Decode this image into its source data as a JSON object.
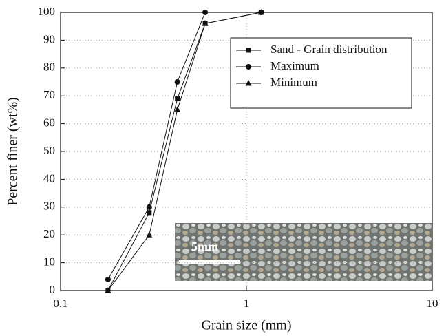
{
  "chart_data": {
    "type": "line",
    "x_label": "Grain size (mm)",
    "y_label": "Percent finer (wt%)",
    "annotation": "5mm",
    "xscale": "log",
    "xlim": [
      0.1,
      10
    ],
    "xticks": [
      0.1,
      1,
      10
    ],
    "ylim": [
      0,
      100
    ],
    "yticks": [
      0,
      10,
      20,
      30,
      40,
      50,
      60,
      70,
      80,
      90,
      100
    ],
    "grid": true,
    "legend": "upper right",
    "series": [
      {
        "name": "Sand - Grain distribution",
        "color": "#111111",
        "marker": "square",
        "x": [
          0.18,
          0.3,
          0.425,
          0.6,
          1.2
        ],
        "values": [
          0,
          28,
          69,
          96,
          100
        ]
      },
      {
        "name": "Maximum",
        "color": "#111111",
        "marker": "circle",
        "x": [
          0.18,
          0.3,
          0.425,
          0.6,
          1.2
        ],
        "values": [
          4,
          30,
          75,
          100,
          100
        ]
      },
      {
        "name": "Minimum",
        "color": "#111111",
        "marker": "triangle",
        "x": [
          0.18,
          0.3,
          0.425,
          0.6,
          1.2
        ],
        "values": [
          0,
          20,
          65,
          96,
          100
        ]
      }
    ]
  }
}
